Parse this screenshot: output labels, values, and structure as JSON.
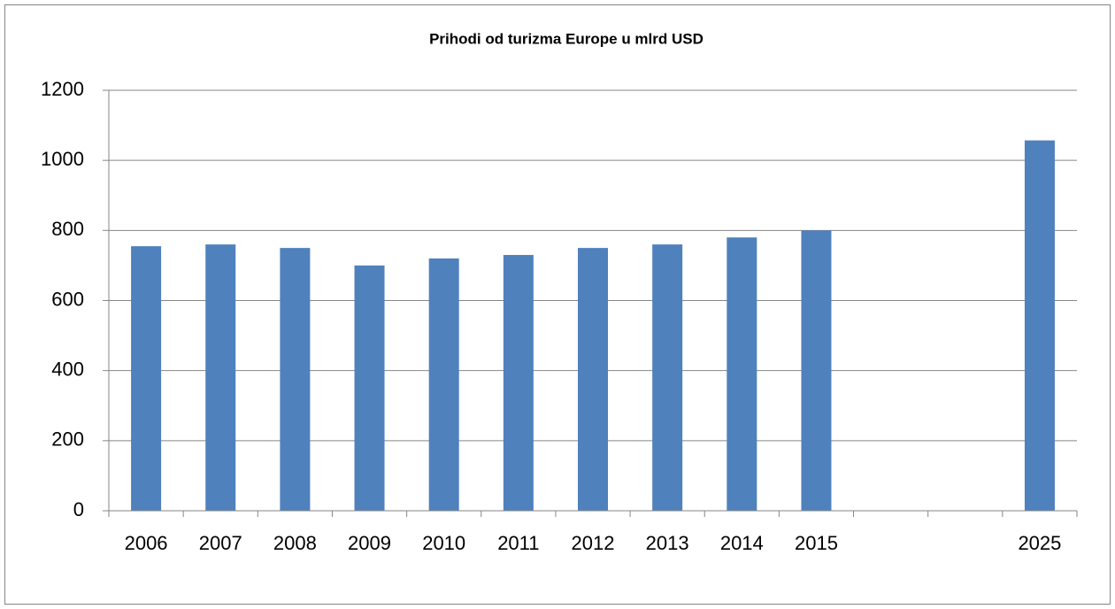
{
  "chart_data": {
    "type": "bar",
    "title": "Prihodi od turizma Europe u mlrd USD",
    "categories": [
      "2006",
      "2007",
      "2008",
      "2009",
      "2010",
      "2011",
      "2012",
      "2013",
      "2014",
      "2015",
      null,
      null,
      "2025"
    ],
    "values": [
      755,
      760,
      750,
      700,
      720,
      730,
      750,
      760,
      780,
      800,
      null,
      null,
      1057
    ],
    "color": "#4f81bd",
    "ylim": [
      0,
      1200
    ],
    "yticks": [
      0,
      200,
      400,
      600,
      800,
      1000,
      1200
    ],
    "grid": true
  }
}
